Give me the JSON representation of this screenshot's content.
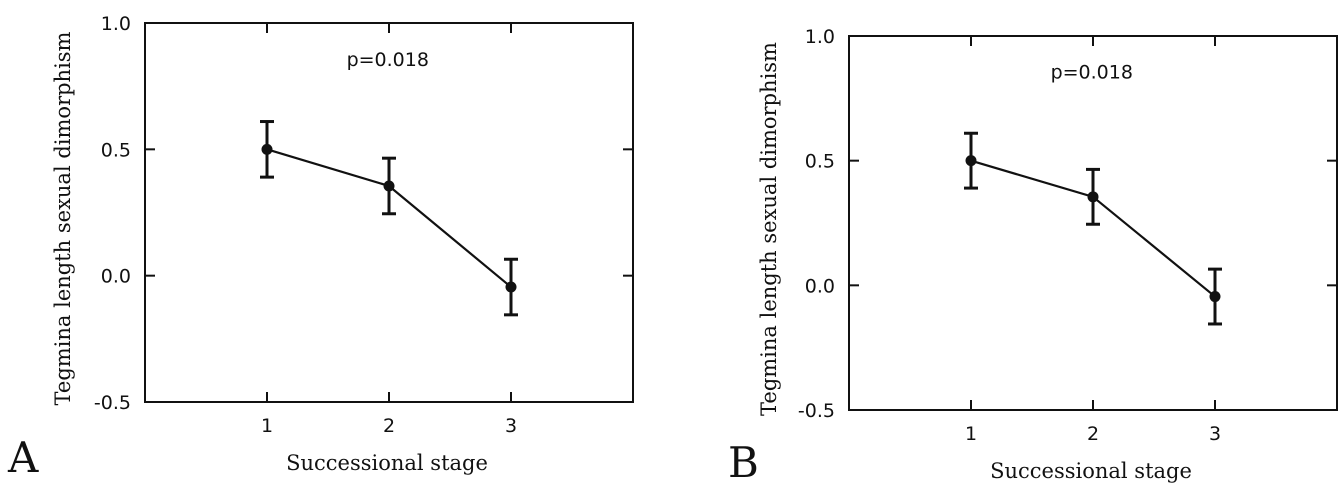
{
  "chart_data": [
    {
      "type": "line",
      "panel_label": "A",
      "xlabel": "Successional stage",
      "ylabel": "Tegmina length sexual dimorphism",
      "x": [
        1,
        2,
        3
      ],
      "y": [
        0.5,
        0.355,
        -0.045
      ],
      "error": [
        0.11,
        0.11,
        0.11
      ],
      "xticks": [
        "1",
        "2",
        "3"
      ],
      "yticks": [
        "1.0",
        "0.5",
        "0.0",
        "-0.5"
      ],
      "xlim": [
        0,
        4
      ],
      "ylim": [
        -0.5,
        1.0
      ],
      "annotation": "p=0.018",
      "grid": false
    },
    {
      "type": "line",
      "panel_label": "B",
      "xlabel": "Successional stage",
      "ylabel": "Tegmina length sexual dimorphism",
      "x": [
        1,
        2,
        3
      ],
      "y": [
        0.5,
        0.355,
        -0.045
      ],
      "error": [
        0.11,
        0.11,
        0.11
      ],
      "xticks": [
        "1",
        "2",
        "3"
      ],
      "yticks": [
        "1.0",
        "0.5",
        "0.0",
        "-0.5"
      ],
      "xlim": [
        0,
        4
      ],
      "ylim": [
        -0.5,
        1.0
      ],
      "annotation": "p=0.018",
      "grid": false
    }
  ]
}
